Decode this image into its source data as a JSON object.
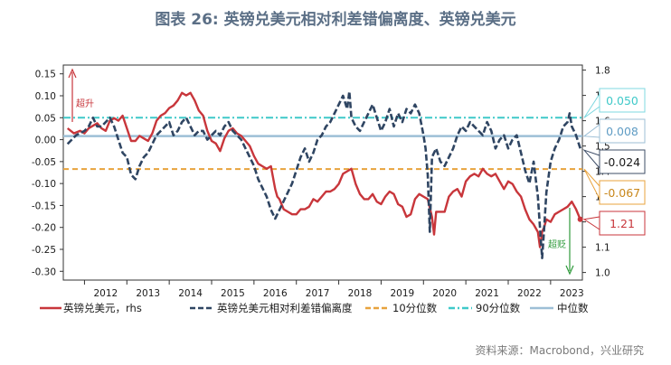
{
  "title": "图表 26: 英镑兑美元相对利差错偏离度、英镑兑美元",
  "source": "资料来源：Macrobond，兴业研究",
  "chart_data": {
    "type": "line",
    "x_range": [
      2011.5,
      2023.75
    ],
    "x_ticks": [
      "2012",
      "2013",
      "2014",
      "2015",
      "2016",
      "2017",
      "2018",
      "2019",
      "2020",
      "2021",
      "2022",
      "2023"
    ],
    "left_axis": {
      "range": [
        -0.32,
        0.17
      ],
      "ticks": [
        "0.15",
        "0.10",
        "0.05",
        "0.00",
        "-0.05",
        "-0.10",
        "-0.15",
        "-0.20",
        "-0.25",
        "-0.30"
      ],
      "tick_values": [
        0.15,
        0.1,
        0.05,
        0.0,
        -0.05,
        -0.1,
        -0.15,
        -0.2,
        -0.25,
        -0.3
      ]
    },
    "right_axis": {
      "range": [
        0.97,
        1.82
      ],
      "ticks": [
        "1.8",
        "1.7",
        "1.6",
        "1.5",
        "1.4",
        "1.3",
        "1.2",
        "1.1",
        "1.0"
      ],
      "tick_values": [
        1.8,
        1.7,
        1.6,
        1.5,
        1.4,
        1.3,
        1.2,
        1.1,
        1.0
      ]
    },
    "reference_lines": [
      {
        "name": "10分位数",
        "value": -0.067,
        "color": "#e8a33d",
        "style": "dashed"
      },
      {
        "name": "90分位数",
        "value": 0.05,
        "color": "#3fc9c9",
        "style": "dashdot"
      },
      {
        "name": "中位数",
        "value": 0.008,
        "color": "#9dbfd6",
        "style": "solid"
      }
    ],
    "series": [
      {
        "name": "英镑兑美元，rhs",
        "axis": "right",
        "color": "#c8363b",
        "x": [
          2011.6,
          2011.75,
          2011.9,
          2012.0,
          2012.1,
          2012.2,
          2012.3,
          2012.4,
          2012.5,
          2012.6,
          2012.7,
          2012.8,
          2012.9,
          2013.0,
          2013.1,
          2013.2,
          2013.3,
          2013.4,
          2013.5,
          2013.6,
          2013.7,
          2013.8,
          2013.9,
          2014.0,
          2014.1,
          2014.2,
          2014.3,
          2014.4,
          2014.5,
          2014.6,
          2014.7,
          2014.8,
          2014.9,
          2015.0,
          2015.1,
          2015.2,
          2015.3,
          2015.4,
          2015.5,
          2015.6,
          2015.7,
          2015.8,
          2015.9,
          2016.0,
          2016.1,
          2016.2,
          2016.3,
          2016.4,
          2016.5,
          2016.55,
          2016.6,
          2016.7,
          2016.8,
          2016.9,
          2017.0,
          2017.1,
          2017.2,
          2017.3,
          2017.4,
          2017.5,
          2017.6,
          2017.7,
          2017.8,
          2017.9,
          2018.0,
          2018.1,
          2018.2,
          2018.3,
          2018.4,
          2018.5,
          2018.6,
          2018.7,
          2018.8,
          2018.9,
          2019.0,
          2019.1,
          2019.2,
          2019.3,
          2019.4,
          2019.5,
          2019.6,
          2019.7,
          2019.8,
          2019.9,
          2020.0,
          2020.1,
          2020.2,
          2020.25,
          2020.3,
          2020.4,
          2020.5,
          2020.6,
          2020.7,
          2020.8,
          2020.9,
          2021.0,
          2021.1,
          2021.2,
          2021.3,
          2021.4,
          2021.5,
          2021.6,
          2021.7,
          2021.8,
          2021.9,
          2022.0,
          2022.1,
          2022.2,
          2022.3,
          2022.4,
          2022.5,
          2022.6,
          2022.7,
          2022.75,
          2022.8,
          2022.85,
          2022.9,
          2023.0,
          2023.1,
          2023.2,
          2023.3,
          2023.4,
          2023.5,
          2023.6,
          2023.7
        ],
        "y": [
          1.57,
          1.55,
          1.56,
          1.55,
          1.57,
          1.58,
          1.59,
          1.57,
          1.56,
          1.6,
          1.61,
          1.6,
          1.62,
          1.57,
          1.52,
          1.52,
          1.54,
          1.53,
          1.52,
          1.55,
          1.6,
          1.62,
          1.63,
          1.65,
          1.66,
          1.68,
          1.71,
          1.7,
          1.71,
          1.68,
          1.64,
          1.62,
          1.56,
          1.52,
          1.51,
          1.48,
          1.53,
          1.56,
          1.57,
          1.55,
          1.54,
          1.52,
          1.5,
          1.46,
          1.43,
          1.42,
          1.41,
          1.42,
          1.33,
          1.3,
          1.29,
          1.25,
          1.24,
          1.23,
          1.23,
          1.25,
          1.25,
          1.26,
          1.29,
          1.28,
          1.3,
          1.32,
          1.32,
          1.33,
          1.35,
          1.39,
          1.4,
          1.41,
          1.35,
          1.31,
          1.29,
          1.29,
          1.31,
          1.28,
          1.27,
          1.3,
          1.32,
          1.31,
          1.27,
          1.26,
          1.22,
          1.23,
          1.29,
          1.31,
          1.3,
          1.29,
          1.22,
          1.15,
          1.24,
          1.24,
          1.24,
          1.3,
          1.32,
          1.33,
          1.3,
          1.36,
          1.38,
          1.39,
          1.38,
          1.41,
          1.39,
          1.38,
          1.39,
          1.36,
          1.33,
          1.36,
          1.35,
          1.32,
          1.3,
          1.25,
          1.21,
          1.19,
          1.16,
          1.1,
          1.16,
          1.18,
          1.21,
          1.2,
          1.23,
          1.24,
          1.25,
          1.26,
          1.28,
          1.25,
          1.21
        ]
      },
      {
        "name": "英镑兑美元相对利差错偏离度",
        "axis": "left",
        "color": "#2f4562",
        "x": [
          2011.6,
          2011.8,
          2012.0,
          2012.1,
          2012.2,
          2012.3,
          2012.4,
          2012.5,
          2012.6,
          2012.7,
          2012.8,
          2012.9,
          2013.0,
          2013.1,
          2013.2,
          2013.3,
          2013.4,
          2013.5,
          2013.6,
          2013.7,
          2013.8,
          2013.9,
          2014.0,
          2014.1,
          2014.2,
          2014.3,
          2014.4,
          2014.5,
          2014.6,
          2014.7,
          2014.8,
          2014.9,
          2015.0,
          2015.1,
          2015.2,
          2015.3,
          2015.4,
          2015.5,
          2015.6,
          2015.7,
          2015.8,
          2015.9,
          2016.0,
          2016.1,
          2016.2,
          2016.3,
          2016.4,
          2016.5,
          2016.6,
          2016.7,
          2016.8,
          2016.9,
          2017.0,
          2017.1,
          2017.2,
          2017.3,
          2017.4,
          2017.5,
          2017.6,
          2017.7,
          2017.8,
          2017.9,
          2018.0,
          2018.1,
          2018.2,
          2018.25,
          2018.3,
          2018.4,
          2018.5,
          2018.6,
          2018.7,
          2018.8,
          2018.9,
          2019.0,
          2019.1,
          2019.2,
          2019.3,
          2019.4,
          2019.5,
          2019.6,
          2019.7,
          2019.8,
          2019.9,
          2020.0,
          2020.05,
          2020.1,
          2020.15,
          2020.2,
          2020.3,
          2020.4,
          2020.5,
          2020.6,
          2020.7,
          2020.8,
          2020.9,
          2021.0,
          2021.1,
          2021.2,
          2021.3,
          2021.4,
          2021.5,
          2021.6,
          2021.7,
          2021.8,
          2021.9,
          2022.0,
          2022.1,
          2022.2,
          2022.3,
          2022.4,
          2022.5,
          2022.6,
          2022.7,
          2022.75,
          2022.8,
          2022.85,
          2022.9,
          2023.0,
          2023.1,
          2023.2,
          2023.3,
          2023.4,
          2023.45,
          2023.5,
          2023.6,
          2023.7
        ],
        "y": [
          -0.01,
          0.01,
          0.02,
          0.03,
          0.05,
          0.03,
          0.03,
          0.04,
          0.05,
          0.03,
          0.0,
          -0.03,
          -0.04,
          -0.08,
          -0.09,
          -0.06,
          -0.04,
          -0.03,
          -0.01,
          0.01,
          0.02,
          0.03,
          0.04,
          0.01,
          0.02,
          0.04,
          0.05,
          0.03,
          0.01,
          0.02,
          0.02,
          0.0,
          0.01,
          0.02,
          0.01,
          0.03,
          0.04,
          0.02,
          0.01,
          0.0,
          -0.02,
          -0.04,
          -0.06,
          -0.09,
          -0.11,
          -0.13,
          -0.16,
          -0.18,
          -0.16,
          -0.14,
          -0.12,
          -0.1,
          -0.07,
          -0.04,
          -0.02,
          -0.05,
          -0.03,
          0.0,
          0.01,
          0.03,
          0.04,
          0.06,
          0.08,
          0.1,
          0.07,
          0.11,
          0.05,
          0.03,
          0.02,
          0.04,
          0.06,
          0.08,
          0.05,
          0.02,
          0.04,
          0.07,
          0.03,
          0.06,
          0.04,
          0.07,
          0.06,
          0.08,
          0.06,
          0.01,
          -0.02,
          -0.08,
          -0.21,
          -0.04,
          -0.02,
          -0.05,
          -0.06,
          -0.04,
          -0.02,
          0.01,
          0.03,
          0.02,
          0.04,
          0.03,
          0.02,
          0.01,
          0.04,
          0.02,
          -0.02,
          0.0,
          0.01,
          -0.02,
          0.0,
          0.01,
          -0.03,
          -0.07,
          -0.1,
          -0.05,
          -0.13,
          -0.2,
          -0.27,
          -0.2,
          -0.12,
          -0.05,
          -0.02,
          0.0,
          0.03,
          0.04,
          0.06,
          0.03,
          0.01,
          -0.02
        ]
      }
    ],
    "callouts": [
      {
        "text": "0.050",
        "color": "#3fc9c9",
        "border": "#7fd8e0",
        "target_axis": "left",
        "target": 0.05
      },
      {
        "text": "0.008",
        "color": "#5f9cc4",
        "border": "#9dbfd6",
        "target_axis": "left",
        "target": 0.008
      },
      {
        "text": "-0.024",
        "color": "#1a1a1a",
        "border": "#3c4c66",
        "target_axis": "left",
        "target": -0.024
      },
      {
        "text": "-0.067",
        "color": "#c8871b",
        "border": "#e8a33d",
        "target_axis": "left",
        "target": -0.067
      },
      {
        "text": "1.21",
        "color": "#c8363b",
        "border": "#c8363b",
        "target_axis": "right",
        "target": 1.21
      }
    ],
    "annotations": [
      {
        "text": "超升",
        "color": "#c8363b"
      },
      {
        "text": "超贬",
        "color": "#2e9a3a"
      }
    ],
    "legend": [
      {
        "label": "英镑兑美元，rhs",
        "color": "#c8363b",
        "style": "solid"
      },
      {
        "label": "英镑兑美元相对利差错偏离度",
        "color": "#2f4562",
        "style": "dashed"
      },
      {
        "label": "10分位数",
        "color": "#e8a33d",
        "style": "dashed"
      },
      {
        "label": "90分位数",
        "color": "#3fc9c9",
        "style": "dashdot"
      },
      {
        "label": "中位数",
        "color": "#9dbfd6",
        "style": "solid"
      }
    ]
  }
}
